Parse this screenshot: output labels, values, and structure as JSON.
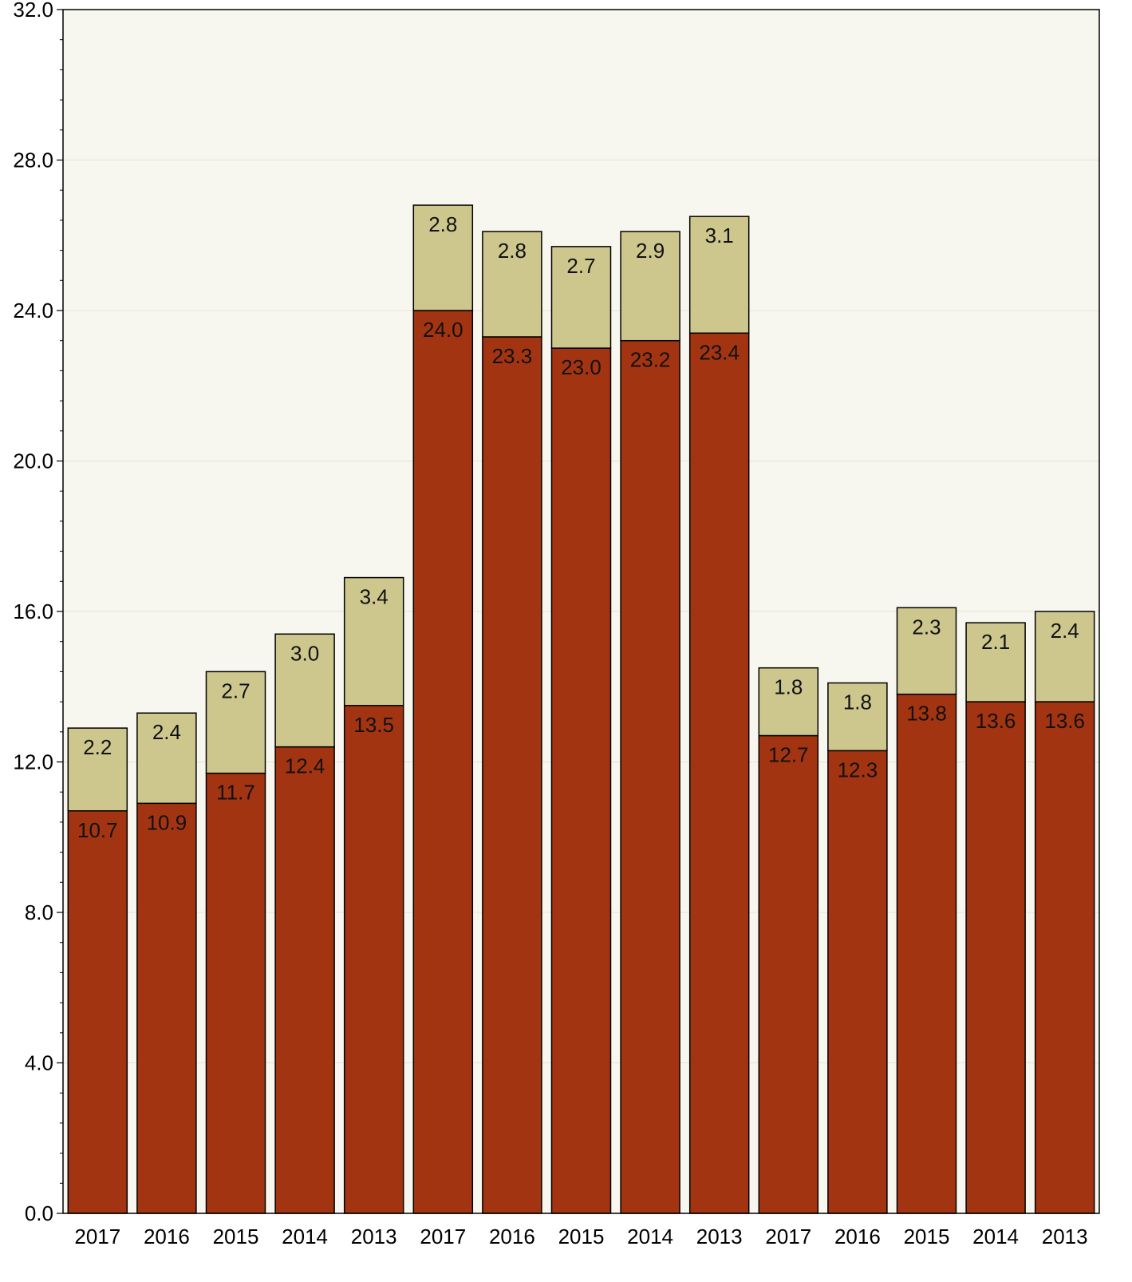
{
  "chart_data": {
    "type": "bar",
    "stacked": true,
    "categories": [
      "2017",
      "2016",
      "2015",
      "2014",
      "2013",
      "2017",
      "2016",
      "2015",
      "2014",
      "2013",
      "2017",
      "2016",
      "2015",
      "2014",
      "2013"
    ],
    "series": [
      {
        "values": [
          10.7,
          10.9,
          11.7,
          12.4,
          13.5,
          24.0,
          23.3,
          23.0,
          23.2,
          23.4,
          12.7,
          12.3,
          13.8,
          13.6,
          13.6
        ],
        "color": "#a33412",
        "labels": [
          "10.7",
          "10.9",
          "11.7",
          "12.4",
          "13.5",
          "24.0",
          "23.3",
          "23.0",
          "23.2",
          "23.4",
          "12.7",
          "12.3",
          "13.8",
          "13.6",
          "13.6"
        ]
      },
      {
        "values": [
          2.2,
          2.4,
          2.7,
          3.0,
          3.4,
          2.8,
          2.8,
          2.7,
          2.9,
          3.1,
          1.8,
          1.8,
          2.3,
          2.1,
          2.4
        ],
        "color": "#cdc78e",
        "labels": [
          "2.2",
          "2.4",
          "2.7",
          "3.0",
          "3.4",
          "2.8",
          "2.8",
          "2.7",
          "2.9",
          "3.1",
          "1.8",
          "1.8",
          "2.3",
          "2.1",
          "2.4"
        ]
      }
    ],
    "ylim": [
      0,
      32
    ],
    "yticks": [
      "0.0",
      "4.0",
      "8.0",
      "12.0",
      "16.0",
      "20.0",
      "24.0",
      "28.0",
      "32.0"
    ],
    "grid": true,
    "plot_background": "#f7f7ef",
    "xlabel": "",
    "ylabel": "",
    "title": ""
  }
}
